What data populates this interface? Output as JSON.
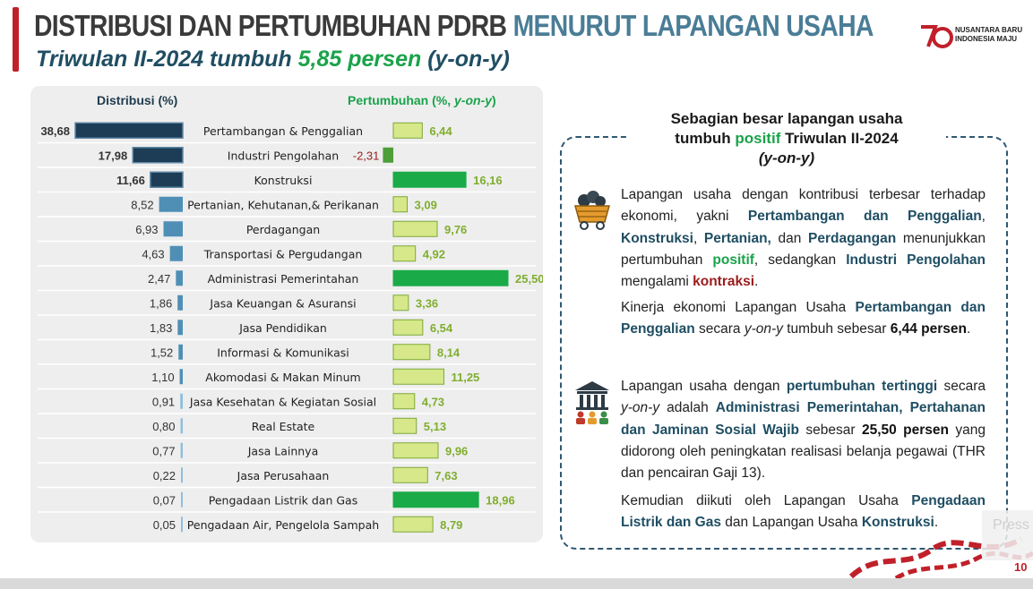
{
  "header": {
    "title_part1": "DISTRIBUSI DAN PERTUMBUHAN PDRB",
    "title_part2": "MENURUT LAPANGAN USAHA",
    "subtitle_prefix": "Triwulan II-2024 tumbuh",
    "subtitle_value": "5,85 persen",
    "subtitle_suffix": "(y-on-y)"
  },
  "logo": {
    "line1": "NUSANTARA BARU",
    "line2": "INDONESIA MAJU"
  },
  "chart_data": {
    "type": "bar",
    "dist_header": "Distribusi (%)",
    "growth_header_prefix": "Pertumbuhan (%,",
    "growth_header_em": "y-on-y",
    "growth_header_suffix": ")",
    "categories": [
      "Pertambangan & Penggalian",
      "Industri Pengolahan",
      "Konstruksi",
      "Pertanian, Kehutanan,& Perikanan",
      "Perdagangan",
      "Transportasi & Pergudangan",
      "Administrasi Pemerintahan",
      "Jasa Keuangan & Asuransi",
      "Jasa Pendidikan",
      "Informasi & Komunikasi",
      "Akomodasi & Makan Minum",
      "Jasa Kesehatan & Kegiatan Sosial",
      "Real Estate",
      "Jasa Lainnya",
      "Jasa Perusahaan",
      "Pengadaan Listrik dan Gas",
      "Pengadaan Air, Pengelola Sampah"
    ],
    "series": [
      {
        "name": "Distribusi (%)",
        "values": [
          38.68,
          17.98,
          11.66,
          8.52,
          6.93,
          4.63,
          2.47,
          1.86,
          1.83,
          1.52,
          1.1,
          0.91,
          0.8,
          0.77,
          0.22,
          0.07,
          0.05
        ],
        "labels": [
          "38,68",
          "17,98",
          "11,66",
          "8,52",
          "6,93",
          "4,63",
          "2,47",
          "1,86",
          "1,83",
          "1,52",
          "1,10",
          "0,91",
          "0,80",
          "0,77",
          "0,22",
          "0,07",
          "0,05"
        ]
      },
      {
        "name": "Pertumbuhan (%, y-on-y)",
        "values": [
          6.44,
          -2.31,
          16.16,
          3.09,
          9.76,
          4.92,
          25.5,
          3.36,
          6.54,
          8.14,
          11.25,
          4.73,
          5.13,
          9.96,
          7.63,
          18.96,
          8.79
        ],
        "labels": [
          "6,44",
          "-2,31",
          "16,16",
          "3,09",
          "9,76",
          "4,92",
          "25,50",
          "3,36",
          "6,54",
          "8,14",
          "11,25",
          "4,73",
          "5,13",
          "9,96",
          "7,63",
          "18,96",
          "8,79"
        ]
      }
    ],
    "highlighted_growth": [
      2,
      6,
      15
    ],
    "colors": {
      "dist_dark": "#1c3d55",
      "dist_mid": "#4f8fb5",
      "dist_light": "#8fbfdc",
      "growth_normal": "#d6e88a",
      "growth_normal_border": "#7fa83a",
      "growth_highlight": "#1aab48",
      "growth_negative": "#4e9e3a",
      "negative_label": "#9a1c1c",
      "growth_label": "#7fae2e"
    }
  },
  "callout": {
    "title_line1": "Sebagian besar lapangan usaha",
    "title_line2a": "tumbuh",
    "title_line2b": "positif",
    "title_line2c": "Triwulan II-2024",
    "title_line3": "(y-on-y)",
    "p1": {
      "t1": "Lapangan usaha dengan kontribusi terbesar terhadap ekonomi, yakni",
      "h1": "Pertambangan dan Penggalian",
      "t2": ",",
      "h2": "Konstruksi",
      "t3": ",",
      "h3": "Pertanian,",
      "t4": "dan",
      "h4": "Perdagangan",
      "t5": "menunjukkan pertumbuhan",
      "g1": "positif",
      "t6": ", sedangkan",
      "h5": "Industri Pengolahan",
      "t7": "mengalami",
      "r1": "kontraksi",
      "t8": "."
    },
    "p2": {
      "t1": "Kinerja ekonomi Lapangan Usaha",
      "h1": "Pertambangan dan Penggalian",
      "t2": "secara",
      "em": "y-on-y",
      "t3": "tumbuh sebesar",
      "b1": "6,44 persen",
      "t4": "."
    },
    "p3": {
      "t1": "Lapangan usaha dengan",
      "h1": "pertumbuhan tertinggi",
      "t2": "secara",
      "em": "y-on-y",
      "t3": "adalah",
      "b1": "Administrasi Pemerintahan, Pertahanan dan Jaminan Sosial Wajib",
      "t4": "sebesar",
      "b2": "25,50 persen",
      "t5": "yang didorong oleh peningkatan realisasi belanja pegawai (THR dan pencairan Gaji 13)."
    },
    "p4": {
      "t1": "Kemudian diikuti oleh Lapangan Usaha",
      "h1": "Pengadaan Listrik dan Gas",
      "t2": "dan Lapangan Usaha",
      "h2": "Konstruksi",
      "t3": "."
    }
  },
  "icons": {
    "mining": "mining-cart-icon",
    "government": "government-building-icon"
  },
  "footer": {
    "page": "10",
    "press_text": "Press"
  }
}
